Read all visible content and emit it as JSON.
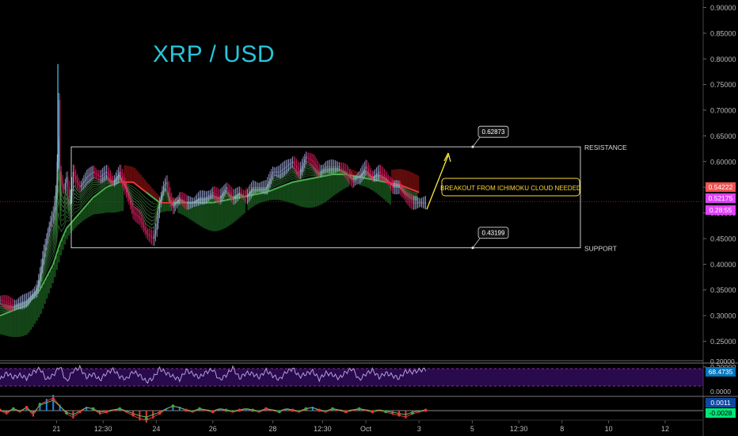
{
  "chart_data": {
    "type": "candlestick",
    "title": "XRP / USD",
    "ylim": [
      0.17,
      0.915
    ],
    "y_ticks": [
      "0.90000",
      "0.85000",
      "0.80000",
      "0.75000",
      "0.70000",
      "0.65000",
      "0.60000",
      "0.55000",
      "0.50000",
      "0.45000",
      "0.40000",
      "0.35000",
      "0.30000",
      "0.25000",
      "0.20000"
    ],
    "y_tick_values": [
      0.9,
      0.85,
      0.8,
      0.75,
      0.7,
      0.65,
      0.6,
      0.55,
      0.5,
      0.45,
      0.4,
      0.35,
      0.3,
      0.25,
      0.2
    ],
    "x_ticks": [
      "21",
      "12:30",
      "24",
      "26",
      "28",
      "12:30",
      "Oct",
      "3",
      "5",
      "12:30",
      "8",
      "10",
      "12"
    ],
    "x_tick_index": [
      85,
      155,
      235,
      320,
      410,
      485,
      550,
      630,
      710,
      780,
      845,
      915,
      1000
    ],
    "resistance": {
      "value": 0.62873,
      "label": "0.62873",
      "line_label": "RESISTANCE"
    },
    "support": {
      "value": 0.43199,
      "label": "0.43199",
      "line_label": "SUPPORT"
    },
    "annotation": "BREAKOUT FROM ICHIMOKU CLOUD NEEDED",
    "price_badges": [
      {
        "value": 0.54222,
        "label": "0.54222",
        "color": "#ef5350"
      },
      {
        "value": 0.52175,
        "label": "0.52175",
        "color": "#e040fb"
      },
      {
        "value": 0.50855,
        "label": "0.28:55",
        "color": "#e040fb"
      }
    ],
    "current_price": 0.52175,
    "series": [
      {
        "name": "price",
        "x": [
          0,
          20,
          40,
          55,
          60,
          65,
          70,
          75,
          80,
          85,
          86,
          87,
          90,
          95,
          100,
          105,
          110,
          115,
          120,
          130,
          140,
          150,
          160,
          170,
          180,
          190,
          200,
          210,
          220,
          230,
          235,
          240,
          245,
          250,
          255,
          260,
          270,
          280,
          290,
          300,
          310,
          320,
          330,
          340,
          350,
          360,
          370,
          380,
          390,
          400,
          410,
          420,
          430,
          440,
          450,
          460,
          470,
          480,
          490,
          500,
          510,
          520,
          530,
          540,
          550,
          560,
          570,
          580,
          590,
          600,
          610,
          620,
          630,
          640
        ],
        "y": [
          0.33,
          0.32,
          0.33,
          0.35,
          0.38,
          0.42,
          0.45,
          0.48,
          0.5,
          0.55,
          0.6,
          0.79,
          0.58,
          0.54,
          0.57,
          0.52,
          0.58,
          0.56,
          0.55,
          0.57,
          0.58,
          0.57,
          0.58,
          0.56,
          0.58,
          0.54,
          0.5,
          0.49,
          0.46,
          0.45,
          0.47,
          0.52,
          0.55,
          0.56,
          0.53,
          0.51,
          0.53,
          0.52,
          0.52,
          0.53,
          0.53,
          0.54,
          0.53,
          0.55,
          0.53,
          0.54,
          0.53,
          0.55,
          0.55,
          0.55,
          0.58,
          0.58,
          0.59,
          0.6,
          0.58,
          0.61,
          0.6,
          0.58,
          0.59,
          0.59,
          0.59,
          0.58,
          0.56,
          0.57,
          0.59,
          0.57,
          0.58,
          0.57,
          0.55,
          0.55,
          0.53,
          0.52,
          0.52,
          0.52
        ]
      },
      {
        "name": "baseline",
        "x": [
          0,
          40,
          60,
          80,
          90,
          100,
          120,
          140,
          160,
          180,
          200,
          220,
          240,
          260,
          280,
          300,
          320,
          340,
          360,
          380,
          400,
          420,
          440,
          460,
          480,
          500,
          520,
          540,
          560,
          580,
          600,
          620,
          630
        ],
        "y": [
          0.3,
          0.32,
          0.35,
          0.4,
          0.44,
          0.47,
          0.5,
          0.53,
          0.55,
          0.56,
          0.56,
          0.54,
          0.52,
          0.52,
          0.52,
          0.52,
          0.52,
          0.525,
          0.53,
          0.535,
          0.54,
          0.55,
          0.56,
          0.565,
          0.57,
          0.575,
          0.575,
          0.57,
          0.565,
          0.56,
          0.555,
          0.545,
          0.54
        ]
      }
    ],
    "lower_panel": {
      "label_top": "0.20000",
      "rsi_value": "68.4735",
      "zero_label": "0.0000",
      "macd_value": "0.0011",
      "signal_value": "-0.0028",
      "x": [
        0,
        10,
        20,
        30,
        40,
        50,
        60,
        70,
        80,
        90,
        100,
        110,
        120,
        130,
        140,
        150,
        160,
        170,
        180,
        190,
        200,
        210,
        220,
        230,
        240,
        250,
        260,
        270,
        280,
        290,
        300,
        310,
        320,
        330,
        340,
        350,
        360,
        370,
        380,
        390,
        400,
        410,
        420,
        430,
        440,
        450,
        460,
        470,
        480,
        490,
        500,
        510,
        520,
        530,
        540,
        550,
        560,
        570,
        580,
        590,
        600,
        610,
        620,
        630,
        640
      ],
      "rsi": [
        45,
        60,
        50,
        55,
        48,
        62,
        70,
        45,
        55,
        75,
        40,
        65,
        72,
        50,
        58,
        44,
        60,
        68,
        52,
        46,
        63,
        55,
        40,
        48,
        70,
        60,
        52,
        45,
        66,
        58,
        50,
        62,
        68,
        44,
        55,
        72,
        48,
        60,
        58,
        50,
        66,
        54,
        45,
        62,
        70,
        52,
        58,
        64,
        46,
        60,
        56,
        48,
        62,
        70,
        44,
        58,
        66,
        50,
        60,
        54,
        48,
        64,
        62,
        66,
        68.5
      ],
      "macd": [
        0,
        -2,
        1,
        -1,
        2,
        -3,
        4,
        6,
        8,
        3,
        -2,
        -4,
        -1,
        2,
        1,
        -2,
        -1,
        0,
        1,
        -1,
        -3,
        -5,
        -6,
        -4,
        -2,
        1,
        3,
        2,
        0,
        -1,
        1,
        0,
        -1,
        1,
        0,
        -1,
        0,
        1,
        0,
        -1,
        1,
        0,
        -1,
        1,
        0,
        -1,
        1,
        2,
        0,
        -1,
        1,
        0,
        -1,
        0,
        1,
        0,
        -1,
        0,
        -1,
        -2,
        -3,
        -4,
        -2,
        -1,
        0
      ]
    },
    "legend": "none",
    "grid": "off"
  }
}
